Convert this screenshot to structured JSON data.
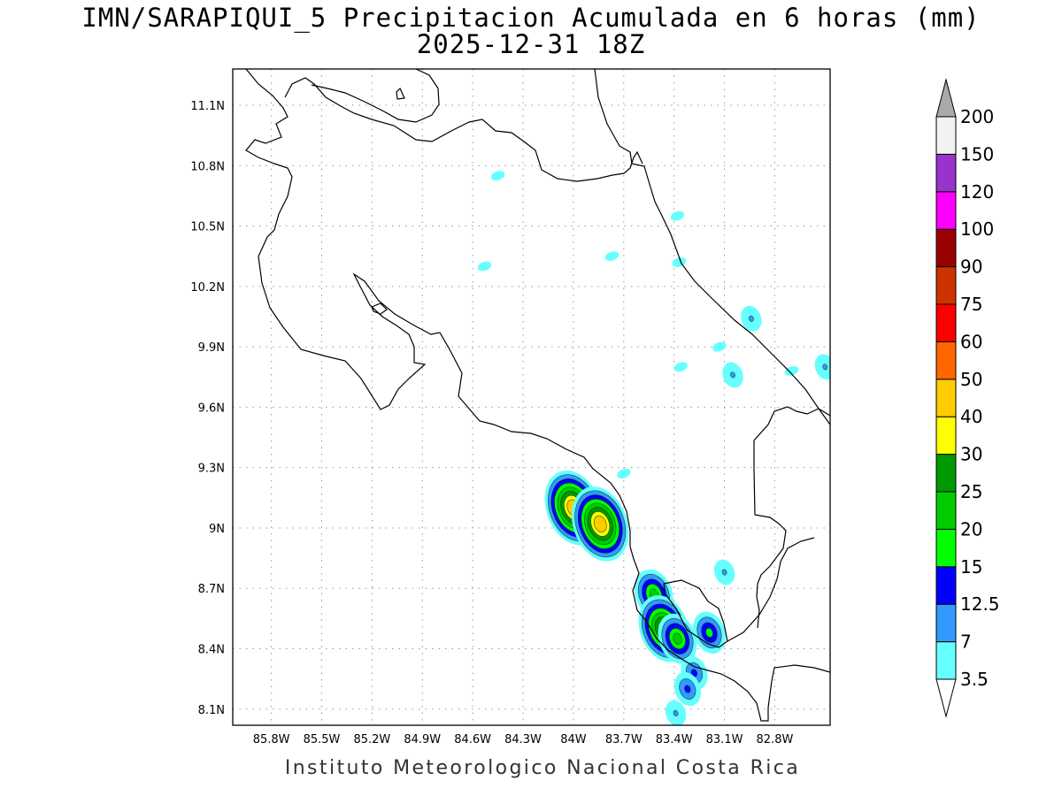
{
  "title": {
    "line1": "IMN/SARAPIQUI_5 Precipitacion Acumulada en 6 horas (mm)",
    "line2": "2025-12-31 18Z"
  },
  "footer": "Instituto Meteorologico Nacional Costa Rica",
  "map": {
    "lon_range": [
      -86.03,
      -82.47
    ],
    "lat_range": [
      8.02,
      11.28
    ],
    "lon_ticks": [
      {
        "value": -85.8,
        "label": "85.8W"
      },
      {
        "value": -85.5,
        "label": "85.5W"
      },
      {
        "value": -85.2,
        "label": "85.2W"
      },
      {
        "value": -84.9,
        "label": "84.9W"
      },
      {
        "value": -84.6,
        "label": "84.6W"
      },
      {
        "value": -84.3,
        "label": "84.3W"
      },
      {
        "value": -84.0,
        "label": "84W"
      },
      {
        "value": -83.7,
        "label": "83.7W"
      },
      {
        "value": -83.4,
        "label": "83.4W"
      },
      {
        "value": -83.1,
        "label": "83.1W"
      },
      {
        "value": -82.8,
        "label": "82.8W"
      }
    ],
    "lat_ticks": [
      {
        "value": 8.1,
        "label": "8.1N"
      },
      {
        "value": 8.4,
        "label": "8.4N"
      },
      {
        "value": 8.7,
        "label": "8.7N"
      },
      {
        "value": 9.0,
        "label": "9N"
      },
      {
        "value": 9.3,
        "label": "9.3N"
      },
      {
        "value": 9.6,
        "label": "9.6N"
      },
      {
        "value": 9.9,
        "label": "9.9N"
      },
      {
        "value": 10.2,
        "label": "10.2N"
      },
      {
        "value": 10.5,
        "label": "10.5N"
      },
      {
        "value": 10.8,
        "label": "10.8N"
      },
      {
        "value": 11.1,
        "label": "11.1N"
      }
    ],
    "grid": true
  },
  "colorbar": {
    "levels": [
      "3.5",
      "7",
      "12.5",
      "15",
      "20",
      "25",
      "30",
      "40",
      "50",
      "60",
      "75",
      "90",
      "100",
      "120",
      "150",
      "200"
    ],
    "colors": [
      "#66ffff",
      "#3399ff",
      "#0000ff",
      "#00ff00",
      "#00cc00",
      "#009900",
      "#ffff00",
      "#ffcc00",
      "#ff6600",
      "#ff0000",
      "#cc3300",
      "#990000",
      "#ff00ff",
      "#9933cc",
      "#f2f2f2"
    ],
    "over_color": "#aaaaaa",
    "under_color": "#ffffff"
  },
  "precip_cells": [
    {
      "lon": -84.0,
      "lat": 9.1,
      "level": 7
    },
    {
      "lon": -83.84,
      "lat": 9.02,
      "level": 7
    },
    {
      "lon": -83.52,
      "lat": 8.67,
      "level": 4
    },
    {
      "lon": -83.46,
      "lat": 8.5,
      "level": 6
    },
    {
      "lon": -83.38,
      "lat": 8.45,
      "level": 4
    },
    {
      "lon": -83.19,
      "lat": 8.48,
      "level": 3
    },
    {
      "lon": -83.28,
      "lat": 8.28,
      "level": 2
    },
    {
      "lon": -83.32,
      "lat": 8.2,
      "level": 2
    },
    {
      "lon": -83.39,
      "lat": 8.08,
      "level": 1
    },
    {
      "lon": -83.1,
      "lat": 8.78,
      "level": 1
    },
    {
      "lon": -82.5,
      "lat": 9.8,
      "level": 1
    },
    {
      "lon": -82.94,
      "lat": 10.04,
      "level": 1
    },
    {
      "lon": -83.05,
      "lat": 9.76,
      "level": 1
    },
    {
      "lon": -83.38,
      "lat": 10.55,
      "level": 0
    },
    {
      "lon": -83.37,
      "lat": 10.32,
      "level": 0
    },
    {
      "lon": -83.77,
      "lat": 10.35,
      "level": 0
    },
    {
      "lon": -84.53,
      "lat": 10.3,
      "level": 0
    },
    {
      "lon": -84.45,
      "lat": 10.75,
      "level": 0
    },
    {
      "lon": -83.13,
      "lat": 9.9,
      "level": 0
    },
    {
      "lon": -82.7,
      "lat": 9.78,
      "level": 0
    },
    {
      "lon": -83.36,
      "lat": 9.8,
      "level": 0
    },
    {
      "lon": -83.7,
      "lat": 9.27,
      "level": 0
    }
  ]
}
